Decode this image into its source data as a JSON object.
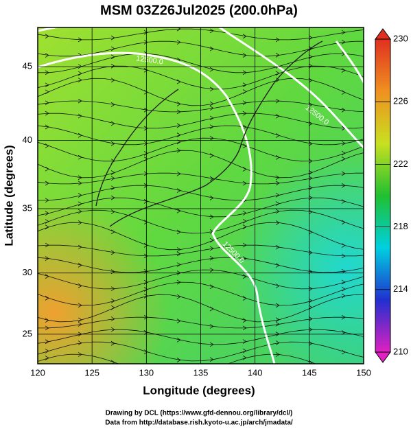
{
  "title": "MSM 03Z26Jul2025 (200.0hPa)",
  "x_axis": {
    "label": "Longitude (degrees)",
    "lim": [
      120,
      150
    ],
    "ticks": [
      120,
      125,
      130,
      135,
      140,
      145,
      150
    ]
  },
  "y_axis": {
    "label": "Latitude  (degrees)",
    "lim": [
      22.5,
      47.5
    ],
    "scale": "mercator",
    "ticks": [
      25,
      30,
      35,
      40,
      45
    ]
  },
  "colorbar": {
    "lim": [
      210,
      230
    ],
    "ticks": [
      230,
      226,
      222,
      218,
      214,
      210
    ],
    "colors": [
      "#e020c0",
      "#2030d0",
      "#00d0e0",
      "#20c030",
      "#c8e020",
      "#f09020",
      "#e03020"
    ]
  },
  "contour_labels": [
    "12500.0",
    "12500.0",
    "12500.0"
  ],
  "credits": [
    "Drawing by DCL (https://www.gfd-dennou.org/library/dcl/)",
    "Data from http://database.rish.kyoto-u.ac.jp/arch/jmadata/"
  ]
}
